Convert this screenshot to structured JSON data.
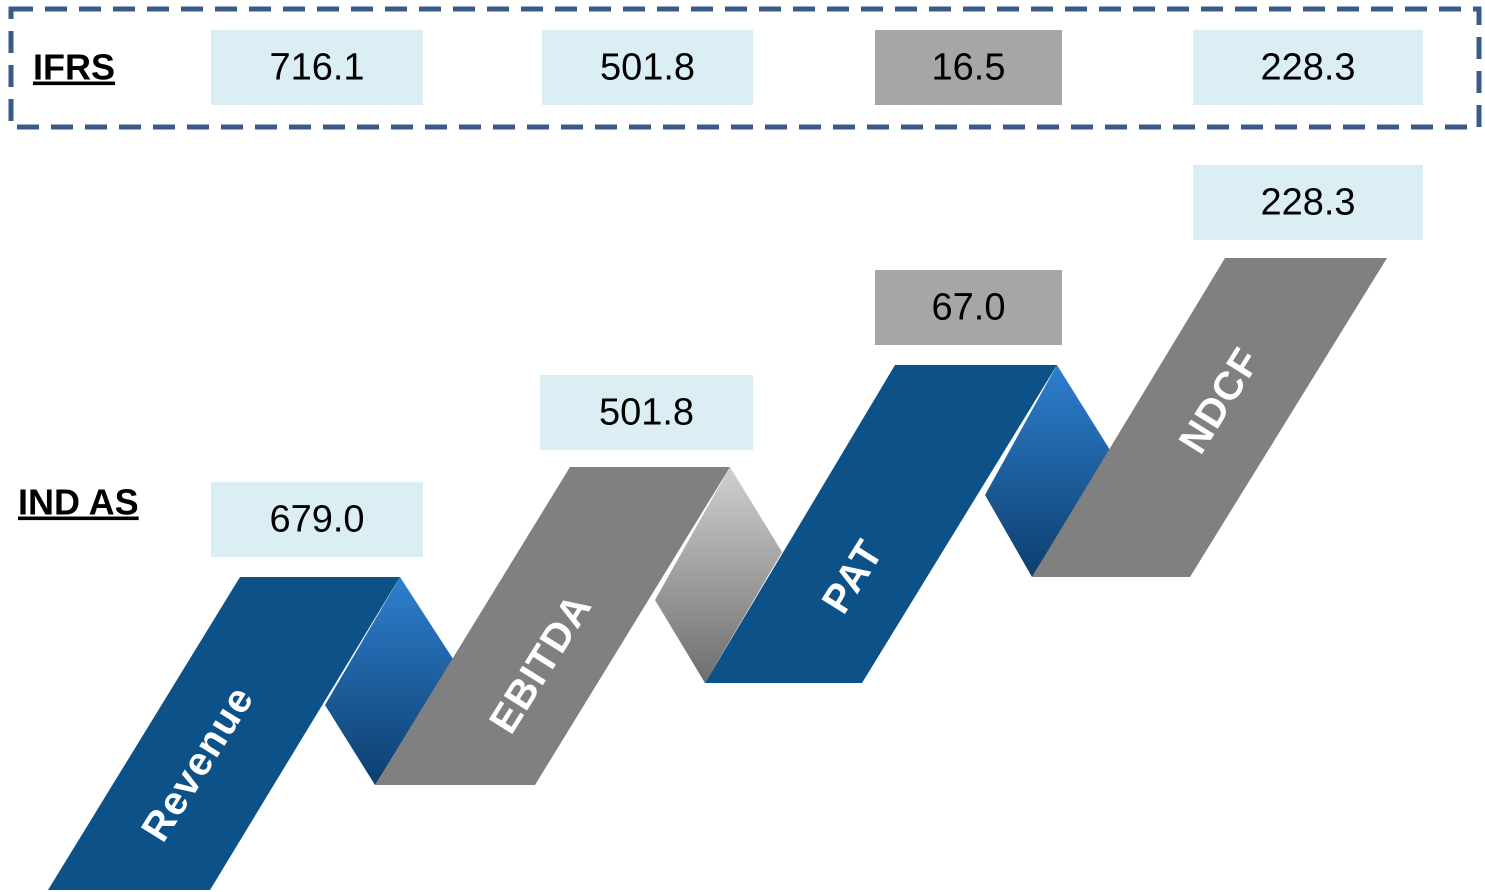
{
  "ifrs": {
    "label": "IFRS",
    "values": [
      "716.1",
      "501.8",
      "16.5",
      "228.3"
    ]
  },
  "ind_as": {
    "label": "IND AS",
    "values": [
      "679.0",
      "501.8",
      "67.0",
      "228.3"
    ]
  },
  "steps": [
    "Revenue",
    "EBITDA",
    "PAT",
    "NDCF"
  ]
}
